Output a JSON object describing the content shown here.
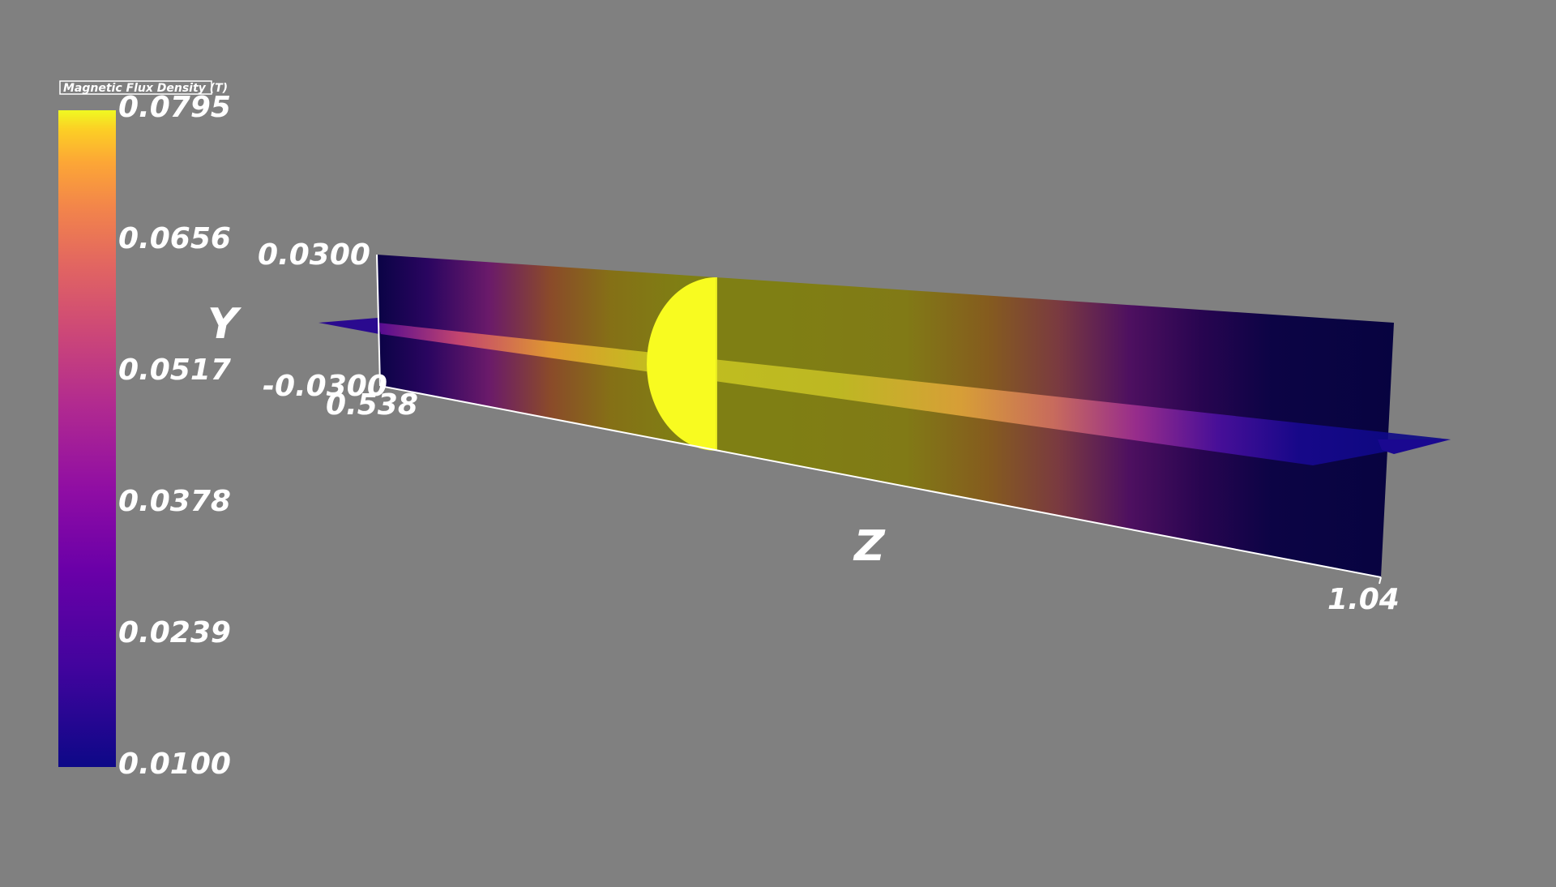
{
  "colorbar": {
    "title": "Magnetic Flux Density (T)",
    "colormap": "plasma",
    "range": [
      0.01,
      0.0795
    ],
    "ticks": [
      "0.0795",
      "0.0656",
      "0.0517",
      "0.0378",
      "0.0239",
      "0.0100"
    ]
  },
  "axes": {
    "y_title": "Y",
    "z_title": "Z",
    "y_ticks": [
      "0.0300",
      "-0.0300"
    ],
    "z_ticks": [
      "0.538",
      "1.04"
    ]
  },
  "colors": {
    "background": "#808080",
    "axis_lines": "#ffffff",
    "plasma_low": "#0d0887",
    "plasma_high": "#f0f921"
  }
}
